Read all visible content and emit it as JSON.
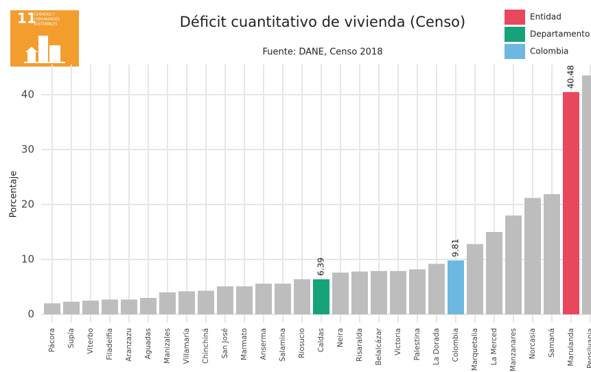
{
  "chart_data": {
    "type": "bar",
    "title": "Déficit cuantitativo de vivienda (Censo)",
    "subtitle": "Fuente: DANE, Censo 2018",
    "y_label": "Porcentaje",
    "logo": {
      "number": "11",
      "text": [
        "CIUDADES Y",
        "COMUNIDADES",
        "SOSTENIBLES"
      ],
      "color": "#f39d2f"
    },
    "categories": [
      "Pácora",
      "Supía",
      "Viterbo",
      "Filadelfia",
      "Aranzazu",
      "Aguadas",
      "Manizales",
      "Villamaría",
      "Chinchiná",
      "San José",
      "Marmato",
      "Anserma",
      "Salamina",
      "Riosucio",
      "Caldas",
      "Neira",
      "Risaralda",
      "Belalcázar",
      "Victoria",
      "Palestina",
      "La Dorada",
      "Colombia",
      "Marquetalia",
      "La Merced",
      "Manzanares",
      "Norcasia",
      "Samaná",
      "Marulanda",
      "Pensilvania"
    ],
    "values": [
      2.0,
      2.3,
      2.5,
      2.7,
      2.7,
      3.0,
      4.0,
      4.2,
      4.3,
      5.1,
      5.1,
      5.6,
      5.6,
      6.4,
      6.39,
      7.6,
      7.8,
      7.9,
      7.9,
      8.2,
      9.2,
      9.81,
      12.8,
      15.0,
      18.0,
      21.2,
      21.9,
      40.48,
      43.5
    ],
    "color": "#bdbdbd",
    "colors": [
      "#bdbdbd",
      "#bdbdbd",
      "#bdbdbd",
      "#bdbdbd",
      "#bdbdbd",
      "#bdbdbd",
      "#bdbdbd",
      "#bdbdbd",
      "#bdbdbd",
      "#bdbdbd",
      "#bdbdbd",
      "#bdbdbd",
      "#bdbdbd",
      "#bdbdbd",
      "#17a37a",
      "#bdbdbd",
      "#bdbdbd",
      "#bdbdbd",
      "#bdbdbd",
      "#bdbdbd",
      "#bdbdbd",
      "#6cb8e0",
      "#bdbdbd",
      "#bdbdbd",
      "#bdbdbd",
      "#bdbdbd",
      "#bdbdbd",
      "#e8475d",
      "#bdbdbd"
    ],
    "legend": [
      {
        "name": "Entidad",
        "color": "#e8475d"
      },
      {
        "name": "Departamento",
        "color": "#17a37a"
      },
      {
        "name": "Colombia",
        "color": "#6cb8e0"
      }
    ],
    "legend_position": "top-right",
    "ylim": [
      -1.5,
      45.5
    ],
    "yticks": [
      0,
      10,
      20,
      30,
      40
    ],
    "grid": true
  }
}
